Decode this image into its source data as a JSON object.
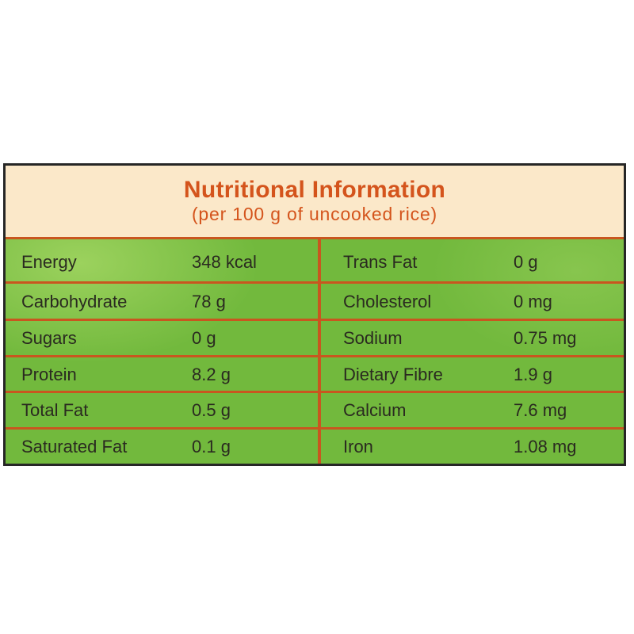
{
  "header": {
    "title": "Nutritional Information",
    "subtitle": "(per 100 g of uncooked rice)"
  },
  "rows": [
    {
      "left_name": "Energy",
      "left_value": "348 kcal",
      "right_name": "Trans Fat",
      "right_value": "0 g"
    },
    {
      "left_name": "Carbohydrate",
      "left_value": "78 g",
      "right_name": "Cholesterol",
      "right_value": "0 mg"
    },
    {
      "left_name": "Sugars",
      "left_value": "0 g",
      "right_name": "Sodium",
      "right_value": "0.75 mg"
    },
    {
      "left_name": "Protein",
      "left_value": "8.2 g",
      "right_name": "Dietary Fibre",
      "right_value": "1.9 g"
    },
    {
      "left_name": "Total Fat",
      "left_value": "0.5 g",
      "right_name": "Calcium",
      "right_value": "7.6 mg"
    },
    {
      "left_name": "Saturated Fat",
      "left_value": "0.1 g",
      "right_name": "Iron",
      "right_value": "1.08 mg"
    }
  ],
  "colors": {
    "title_orange": "#d4541c",
    "header_cream": "#fbe8c9",
    "table_green": "#72b93d",
    "grid_orange": "#c9561f",
    "border": "#262626"
  }
}
